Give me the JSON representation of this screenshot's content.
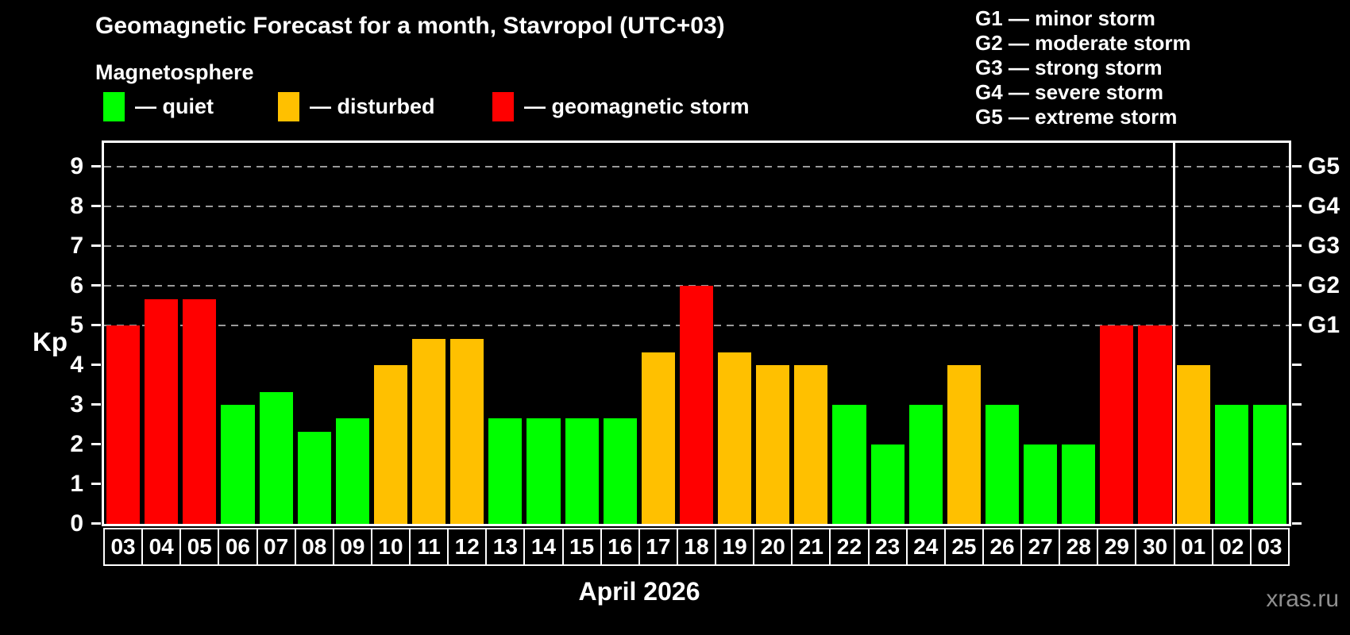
{
  "header": {
    "title": "Geomagnetic Forecast for a month, Stavropol (UTC+03)",
    "subtitle": "Magnetosphere"
  },
  "legend": {
    "items": [
      {
        "key": "quiet",
        "label": "— quiet",
        "color": "#00FF00"
      },
      {
        "key": "disturbed",
        "label": "— disturbed",
        "color": "#FFC000"
      },
      {
        "key": "storm",
        "label": "— geomagnetic storm",
        "color": "#FF0000"
      }
    ]
  },
  "storm_scale_legend": {
    "items": [
      {
        "label": "G1 — minor storm"
      },
      {
        "label": "G2 — moderate storm"
      },
      {
        "label": "G3 — strong storm"
      },
      {
        "label": "G4 — severe storm"
      },
      {
        "label": "G5 — extreme storm"
      }
    ]
  },
  "chart_data": {
    "type": "bar",
    "title": "Geomagnetic Forecast for a month, Stavropol (UTC+03)",
    "ylabel": "Kp",
    "xlabel": "April 2026",
    "ylim": [
      0,
      9.6
    ],
    "yticks": [
      0,
      1,
      2,
      3,
      4,
      5,
      6,
      7,
      8,
      9
    ],
    "gridlines_kp": [
      5,
      6,
      7,
      8,
      9
    ],
    "grid": "dashed horizontal at storm levels only",
    "legend_position": "top",
    "right_axis": {
      "labels": [
        {
          "label": "G1",
          "kp": 5
        },
        {
          "label": "G2",
          "kp": 6
        },
        {
          "label": "G3",
          "kp": 7
        },
        {
          "label": "G4",
          "kp": 8
        },
        {
          "label": "G5",
          "kp": 9
        }
      ]
    },
    "month_separator_after_index": 27,
    "categories": [
      "03",
      "04",
      "05",
      "06",
      "07",
      "08",
      "09",
      "10",
      "11",
      "12",
      "13",
      "14",
      "15",
      "16",
      "17",
      "18",
      "19",
      "20",
      "21",
      "22",
      "23",
      "24",
      "25",
      "26",
      "27",
      "28",
      "29",
      "30",
      "01",
      "02",
      "03"
    ],
    "values": [
      5,
      5.67,
      5.67,
      3,
      3.33,
      2.33,
      2.67,
      4,
      4.67,
      4.67,
      2.67,
      2.67,
      2.67,
      2.67,
      4.33,
      6,
      4.33,
      4,
      4,
      3,
      2,
      3,
      4,
      3,
      2,
      2,
      5,
      5,
      4,
      3,
      3
    ],
    "statuses": [
      "storm",
      "storm",
      "storm",
      "quiet",
      "quiet",
      "quiet",
      "quiet",
      "disturbed",
      "disturbed",
      "disturbed",
      "quiet",
      "quiet",
      "quiet",
      "quiet",
      "disturbed",
      "storm",
      "disturbed",
      "disturbed",
      "disturbed",
      "quiet",
      "quiet",
      "quiet",
      "disturbed",
      "quiet",
      "quiet",
      "quiet",
      "storm",
      "storm",
      "disturbed",
      "quiet",
      "quiet"
    ],
    "colors": {
      "quiet": "#00FF00",
      "disturbed": "#FFC000",
      "storm": "#FF0000"
    }
  },
  "footer": {
    "caption": "April 2026",
    "watermark": "xras.ru"
  }
}
